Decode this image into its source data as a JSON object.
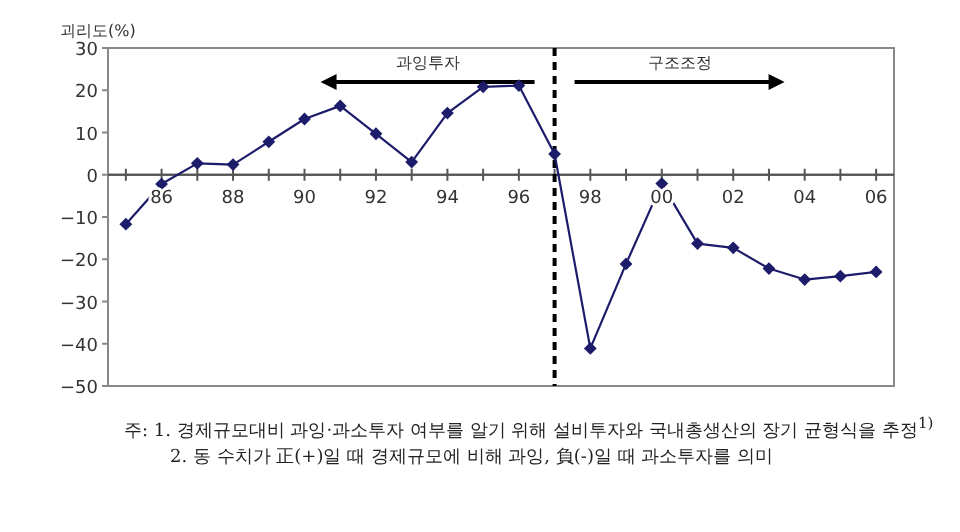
{
  "chart_data": {
    "type": "line",
    "ylabel": "괴리도(%)",
    "x": [
      1985,
      1986,
      1987,
      1988,
      1989,
      1990,
      1991,
      1992,
      1993,
      1994,
      1995,
      1996,
      1997,
      1998,
      1999,
      2000,
      2001,
      2002,
      2003,
      2004,
      2005,
      2006
    ],
    "series": [
      {
        "color": "#1c1c6b",
        "values": [
          -11.7,
          -2.2,
          2.7,
          2.4,
          7.8,
          13.2,
          16.3,
          9.7,
          3.0,
          14.6,
          20.8,
          21.1,
          4.9,
          -41.1,
          -21.1,
          -2.1,
          -16.3,
          -17.3,
          -22.2,
          -24.8,
          -24.0,
          -23.0
        ]
      }
    ],
    "marker": "diamond",
    "line_style": "solid",
    "xlim": [
      1984.5,
      2006.5
    ],
    "xticks": [
      {
        "value": 1985,
        "label": null
      },
      {
        "value": 1986,
        "label": "86"
      },
      {
        "value": 1987,
        "label": null
      },
      {
        "value": 1988,
        "label": "88"
      },
      {
        "value": 1989,
        "label": null
      },
      {
        "value": 1990,
        "label": "90"
      },
      {
        "value": 1991,
        "label": null
      },
      {
        "value": 1992,
        "label": "92"
      },
      {
        "value": 1993,
        "label": null
      },
      {
        "value": 1994,
        "label": "94"
      },
      {
        "value": 1995,
        "label": null
      },
      {
        "value": 1996,
        "label": "96"
      },
      {
        "value": 1997,
        "label": null
      },
      {
        "value": 1998,
        "label": "98"
      },
      {
        "value": 1999,
        "label": null
      },
      {
        "value": 2000,
        "label": "00"
      },
      {
        "value": 2001,
        "label": null
      },
      {
        "value": 2002,
        "label": "02"
      },
      {
        "value": 2003,
        "label": null
      },
      {
        "value": 2004,
        "label": "04"
      },
      {
        "value": 2005,
        "label": null
      },
      {
        "value": 2006,
        "label": "06"
      }
    ],
    "ylim": [
      -50,
      30
    ],
    "yticks": [
      -50,
      -40,
      -30,
      -20,
      -10,
      0,
      10,
      20,
      30
    ],
    "ref_lines": [
      {
        "axis": "x",
        "value": 1997,
        "color": "#000000",
        "line_style": "dashed"
      }
    ],
    "annotations": [
      "과잉투자",
      "구조조정",
      "주: 1. 경제규모대비 과잉·과소투자 여부를 알기 위해 설비투자와 국내총생산의 장기 균형식을 추정$^{1)}$",
      "2. 동 수치가 正(+)일 때 경제규모에 비해 과잉, 負(-)일 때 과소투자를 의미"
    ]
  }
}
